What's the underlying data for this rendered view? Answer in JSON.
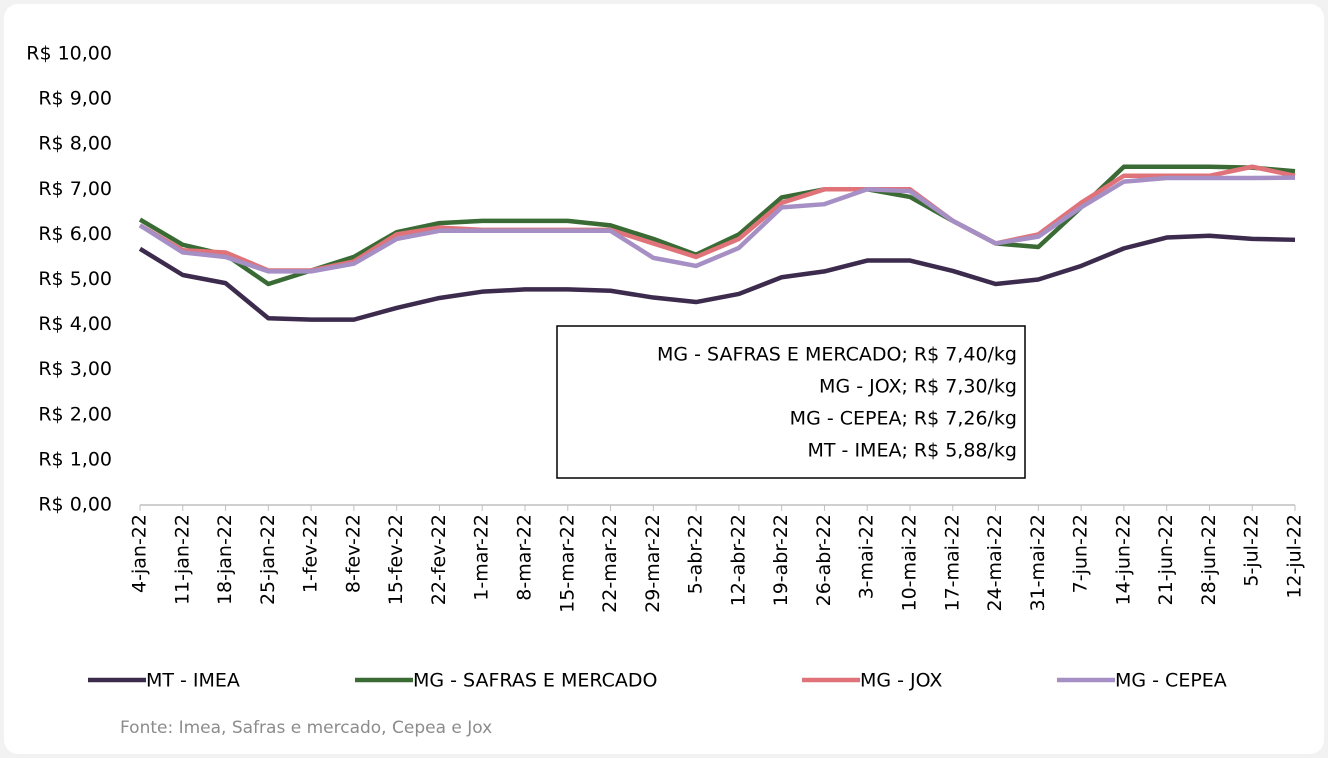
{
  "chart_data": {
    "type": "line",
    "categories": [
      "4-jan-22",
      "11-jan-22",
      "18-jan-22",
      "25-jan-22",
      "1-fev-22",
      "8-fev-22",
      "15-fev-22",
      "22-fev-22",
      "1-mar-22",
      "8-mar-22",
      "15-mar-22",
      "22-mar-22",
      "29-mar-22",
      "5-abr-22",
      "12-abr-22",
      "19-abr-22",
      "26-abr-22",
      "3-mai-22",
      "10-mai-22",
      "17-mai-22",
      "24-mai-22",
      "31-mai-22",
      "7-jun-22",
      "14-jun-22",
      "21-jun-22",
      "28-jun-22",
      "5-jul-22",
      "12-jul-22"
    ],
    "series": [
      {
        "name": "MT - IMEA",
        "color": "#3d2b4d",
        "values": [
          5.68,
          5.1,
          4.92,
          4.14,
          4.11,
          4.11,
          4.37,
          4.59,
          4.73,
          4.78,
          4.78,
          4.75,
          4.6,
          4.5,
          4.68,
          5.05,
          5.18,
          5.42,
          5.42,
          5.19,
          4.9,
          5.0,
          5.3,
          5.69,
          5.93,
          5.97,
          5.9,
          5.88
        ]
      },
      {
        "name": "MG - SAFRAS E MERCADO",
        "color": "#3a6b35",
        "values": [
          6.33,
          5.77,
          5.55,
          4.9,
          5.2,
          5.5,
          6.05,
          6.25,
          6.3,
          6.3,
          6.3,
          6.2,
          5.9,
          5.55,
          6.0,
          6.82,
          7.0,
          7.0,
          6.83,
          6.3,
          5.8,
          5.72,
          6.6,
          7.5,
          7.5,
          7.5,
          7.48,
          7.4
        ]
      },
      {
        "name": "MG - JOX",
        "color": "#e0737a",
        "values": [
          6.2,
          5.65,
          5.6,
          5.2,
          5.2,
          5.4,
          6.0,
          6.15,
          6.1,
          6.1,
          6.1,
          6.1,
          5.8,
          5.5,
          5.9,
          6.7,
          7.0,
          7.0,
          7.0,
          6.3,
          5.8,
          6.0,
          6.7,
          7.3,
          7.3,
          7.3,
          7.5,
          7.3
        ]
      },
      {
        "name": "MG - CEPEA",
        "color": "#a58fc4",
        "values": [
          6.2,
          5.6,
          5.5,
          5.18,
          5.18,
          5.35,
          5.9,
          6.08,
          6.08,
          6.08,
          6.08,
          6.08,
          5.48,
          5.3,
          5.7,
          6.6,
          6.67,
          7.0,
          6.96,
          6.3,
          5.8,
          5.95,
          6.6,
          7.17,
          7.25,
          7.25,
          7.25,
          7.26
        ]
      }
    ],
    "ylim": [
      0,
      10
    ],
    "yticks": [
      {
        "value": 0,
        "label": "R$ 0,00"
      },
      {
        "value": 1,
        "label": "R$ 1,00"
      },
      {
        "value": 2,
        "label": "R$ 2,00"
      },
      {
        "value": 3,
        "label": "R$ 3,00"
      },
      {
        "value": 4,
        "label": "R$ 4,00"
      },
      {
        "value": 5,
        "label": "R$ 5,00"
      },
      {
        "value": 6,
        "label": "R$ 6,00"
      },
      {
        "value": 7,
        "label": "R$ 7,00"
      },
      {
        "value": 8,
        "label": "R$ 8,00"
      },
      {
        "value": 9,
        "label": "R$ 9,00"
      },
      {
        "value": 10,
        "label": "R$ 10,00"
      }
    ],
    "annotations": [
      "MG - SAFRAS E MERCADO; R$ 7,40/kg",
      "MG - JOX; R$ 7,30/kg",
      "MG - CEPEA; R$ 7,26/kg",
      "MT - IMEA; R$ 5,88/kg"
    ],
    "legend": "bottom",
    "source": "Fonte: Imea, Safras e mercado, Cepea e Jox"
  }
}
